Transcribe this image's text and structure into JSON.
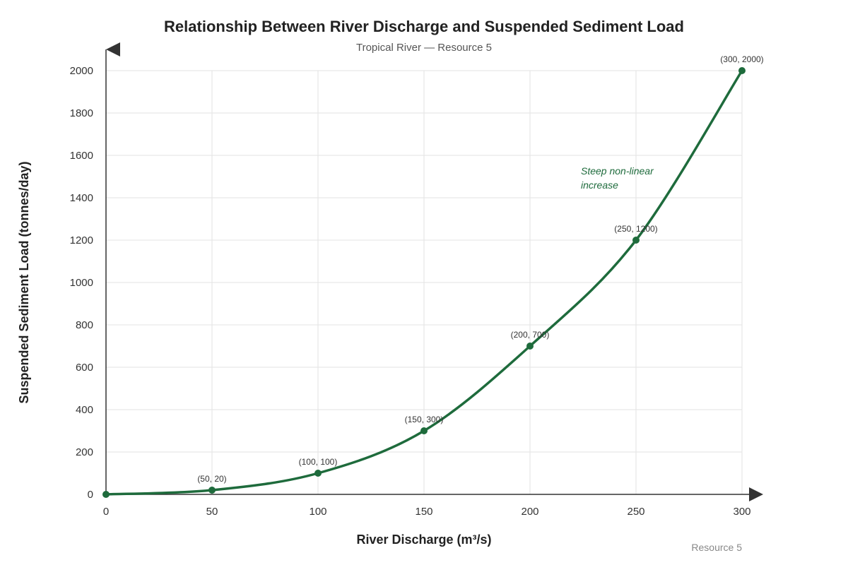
{
  "chart_data": {
    "type": "line",
    "title": "Relationship Between River Discharge and Suspended Sediment Load",
    "subtitle": "Tropical River — Resource 5",
    "xlabel": "River Discharge (m³/s)",
    "ylabel": "Suspended Sediment Load (tonnes/day)",
    "xlim": [
      0,
      300
    ],
    "ylim": [
      0,
      2000
    ],
    "x_ticks": [
      0,
      50,
      100,
      150,
      200,
      250,
      300
    ],
    "y_ticks": [
      0,
      200,
      400,
      600,
      800,
      1000,
      1200,
      1400,
      1600,
      1800,
      2000
    ],
    "grid": true,
    "series": [
      {
        "x": [
          0,
          50,
          100,
          150,
          200,
          250,
          300
        ],
        "y": [
          0,
          20,
          100,
          300,
          700,
          1200,
          2000
        ],
        "color": "#1e6b3c"
      }
    ],
    "point_labels": [
      "",
      "(50, 20)",
      "(100, 100)",
      "(150, 300)",
      "(200, 700)",
      "(250, 1200)",
      "(300, 2000)"
    ],
    "annotation": {
      "lines": [
        "Steep non-linear",
        "increase"
      ],
      "x": 224,
      "y": 1510,
      "color": "#1e6b3c"
    },
    "footer": "Resource 5"
  }
}
